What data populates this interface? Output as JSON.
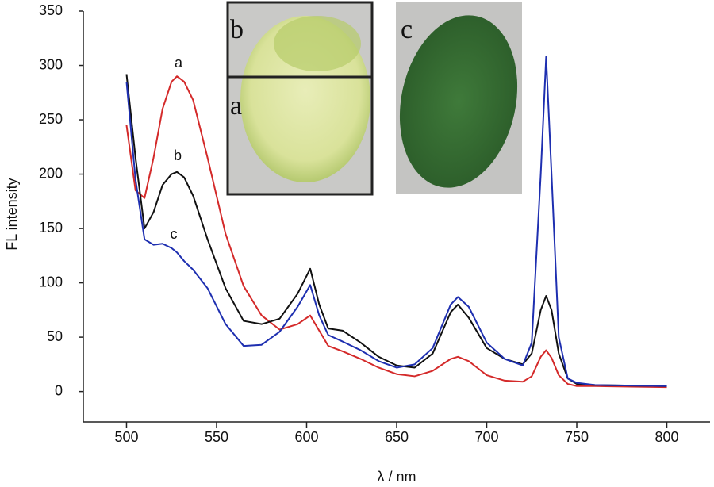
{
  "chart_data": {
    "type": "line",
    "x_label": "λ / nm",
    "y_label": "FL intensity",
    "x": [
      500,
      505,
      510,
      515,
      520,
      525,
      528,
      532,
      537,
      545,
      555,
      565,
      575,
      585,
      595,
      602,
      607,
      612,
      620,
      630,
      640,
      650,
      660,
      670,
      680,
      684,
      690,
      700,
      710,
      720,
      725,
      730,
      733,
      736,
      740,
      745,
      750,
      760,
      780,
      800
    ],
    "series": [
      {
        "name": "a",
        "color": "#d42a2a",
        "values": [
          245,
          185,
          178,
          215,
          260,
          285,
          290,
          285,
          268,
          215,
          145,
          97,
          70,
          57,
          62,
          70,
          56,
          42,
          37,
          30,
          22,
          16,
          14,
          19,
          30,
          32,
          28,
          15,
          10,
          9,
          14,
          32,
          38,
          31,
          15,
          7,
          5,
          5,
          4.5,
          4
        ]
      },
      {
        "name": "b",
        "color": "#111111",
        "values": [
          292,
          215,
          150,
          165,
          190,
          200,
          202,
          197,
          180,
          140,
          95,
          65,
          62,
          67,
          90,
          113,
          80,
          58,
          56,
          45,
          32,
          24,
          22,
          35,
          73,
          80,
          68,
          40,
          30,
          25,
          35,
          75,
          88,
          75,
          35,
          12,
          7,
          6,
          5.5,
          5
        ]
      },
      {
        "name": "c",
        "color": "#1e2fb0",
        "values": [
          285,
          195,
          140,
          135,
          136,
          132,
          128,
          120,
          112,
          95,
          62,
          42,
          43,
          55,
          78,
          98,
          70,
          52,
          46,
          38,
          28,
          22,
          25,
          40,
          80,
          87,
          78,
          45,
          30,
          24,
          45,
          200,
          308,
          200,
          50,
          12,
          8,
          6,
          5.5,
          5
        ]
      }
    ],
    "xlim": [
      476,
      824
    ],
    "ylim": [
      -28,
      350
    ],
    "xticks": [
      500,
      550,
      600,
      650,
      700,
      750,
      800
    ],
    "yticks": [
      0,
      50,
      100,
      150,
      200,
      250,
      300,
      350
    ],
    "inset_labels": [
      "b",
      "a",
      "c"
    ]
  }
}
